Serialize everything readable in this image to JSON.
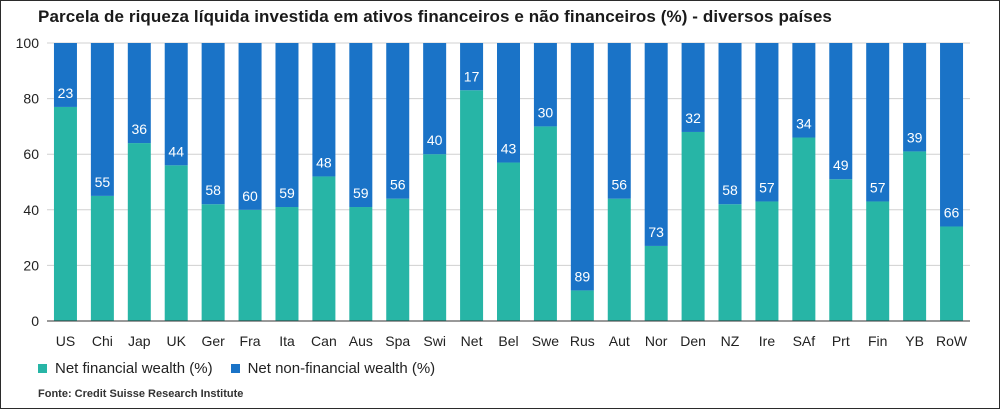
{
  "title": "Parcela de riqueza líquida investida em ativos financeiros e não financeiros (%) - diversos países",
  "source": "Fonte: Credit Suisse Research Institute",
  "colors": {
    "financial": "#27b5a6",
    "non_financial": "#1a73c7",
    "grid": "#d0d0d0",
    "axis": "#333333",
    "label": "#ffffff"
  },
  "chart_data": {
    "type": "bar",
    "stacked": true,
    "categories": [
      "US",
      "Chi",
      "Jap",
      "UK",
      "Ger",
      "Fra",
      "Ita",
      "Can",
      "Aus",
      "Spa",
      "Swi",
      "Net",
      "Bel",
      "Swe",
      "Rus",
      "Aut",
      "Nor",
      "Den",
      "NZ",
      "Ire",
      "SAf",
      "Prt",
      "Fin",
      "YB",
      "RoW"
    ],
    "series": [
      {
        "name": "Net financial wealth (%)",
        "values": [
          77,
          45,
          64,
          56,
          42,
          40,
          41,
          52,
          41,
          44,
          60,
          83,
          57,
          70,
          11,
          44,
          27,
          68,
          42,
          43,
          66,
          51,
          43,
          61,
          34
        ]
      },
      {
        "name": "Net non-financial wealth (%)",
        "values": [
          23,
          55,
          36,
          44,
          58,
          60,
          59,
          48,
          59,
          56,
          40,
          17,
          43,
          30,
          89,
          56,
          73,
          32,
          58,
          57,
          34,
          49,
          57,
          39,
          66
        ]
      }
    ],
    "ylim": [
      0,
      100
    ],
    "yticks": [
      0,
      20,
      40,
      60,
      80,
      100
    ],
    "grid": true,
    "legend": "bottom-left"
  }
}
